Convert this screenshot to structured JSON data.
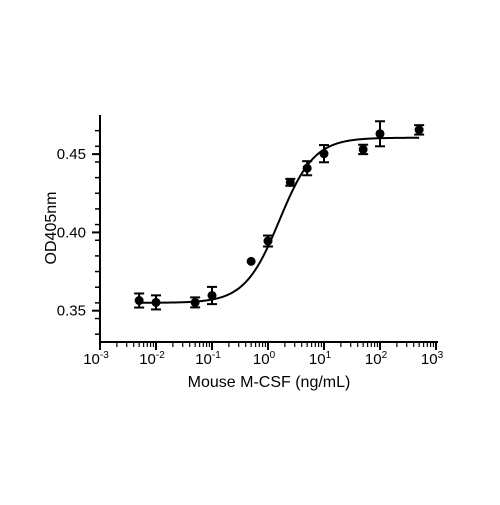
{
  "chart_data": {
    "type": "scatter",
    "title": "",
    "xlabel": "Mouse M-CSF (ng/mL)",
    "ylabel": "OD405nm",
    "x_scale": "log",
    "xlim": [
      0.001,
      1000
    ],
    "ylim": [
      0.33,
      0.475
    ],
    "x_ticks": [
      {
        "value": 0.001,
        "base": "10",
        "exp": "-3"
      },
      {
        "value": 0.01,
        "base": "10",
        "exp": "-2"
      },
      {
        "value": 0.1,
        "base": "10",
        "exp": "-1"
      },
      {
        "value": 1,
        "base": "10",
        "exp": "0"
      },
      {
        "value": 10,
        "base": "10",
        "exp": "1"
      },
      {
        "value": 100,
        "base": "10",
        "exp": "2"
      },
      {
        "value": 1000,
        "base": "10",
        "exp": "3"
      }
    ],
    "y_ticks": [
      {
        "value": 0.35,
        "label": "0.35"
      },
      {
        "value": 0.4,
        "label": "0.40"
      },
      {
        "value": 0.45,
        "label": "0.45"
      }
    ],
    "grid": false,
    "legend": "none",
    "marker_color": "#000000",
    "line_color": "#000000",
    "points": [
      {
        "x": 0.005,
        "y": 0.3565,
        "err": 0.0045
      },
      {
        "x": 0.01,
        "y": 0.3553,
        "err": 0.0045
      },
      {
        "x": 0.05,
        "y": 0.3553,
        "err": 0.0032
      },
      {
        "x": 0.1,
        "y": 0.3597,
        "err": 0.0055
      },
      {
        "x": 0.5,
        "y": 0.3815,
        "err": 0.0
      },
      {
        "x": 1,
        "y": 0.3945,
        "err": 0.0035
      },
      {
        "x": 2.5,
        "y": 0.432,
        "err": 0.0022
      },
      {
        "x": 5,
        "y": 0.441,
        "err": 0.0045
      },
      {
        "x": 10,
        "y": 0.4503,
        "err": 0.0055
      },
      {
        "x": 50,
        "y": 0.453,
        "err": 0.003
      },
      {
        "x": 100,
        "y": 0.463,
        "err": 0.008
      },
      {
        "x": 500,
        "y": 0.4655,
        "err": 0.003
      }
    ],
    "fit_curve": {
      "model": "four-parameter logistic",
      "bottom": 0.355,
      "top": 0.4605,
      "ec50": 1.6,
      "hill": 1.4,
      "x_range": [
        0.005,
        500
      ]
    }
  }
}
